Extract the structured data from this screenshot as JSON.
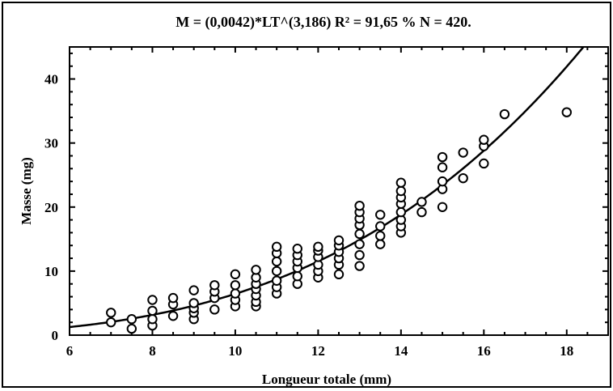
{
  "chart_data": {
    "type": "scatter",
    "title": "M = (0,0042)*LT^(3,186)   R² = 91,65 %  N = 420.",
    "xlabel": "Longueur totale (mm)",
    "ylabel": "Masse (mg)",
    "xlim": [
      6,
      19
    ],
    "ylim": [
      0,
      45
    ],
    "xticks": [
      "6",
      "8",
      "10",
      "12",
      "14",
      "16",
      "18"
    ],
    "yticks": [
      "0",
      "10",
      "20",
      "30",
      "40"
    ],
    "grid": false,
    "marker": "open-circle",
    "fit": {
      "type": "power",
      "a": 0.0042,
      "b": 3.186
    },
    "points": [
      [
        7,
        2
      ],
      [
        7,
        3.5
      ],
      [
        7.5,
        1
      ],
      [
        7.5,
        2.5
      ],
      [
        8,
        1.5
      ],
      [
        8,
        2.5
      ],
      [
        8,
        3.8
      ],
      [
        8,
        5.5
      ],
      [
        8.5,
        3
      ],
      [
        8.5,
        4.8
      ],
      [
        8.5,
        5.8
      ],
      [
        9,
        2.5
      ],
      [
        9,
        3.5
      ],
      [
        9,
        4.2
      ],
      [
        9,
        5
      ],
      [
        9,
        7
      ],
      [
        9.5,
        4
      ],
      [
        9.5,
        5.8
      ],
      [
        9.5,
        6.8
      ],
      [
        9.5,
        7.8
      ],
      [
        10,
        4.5
      ],
      [
        10,
        5.5
      ],
      [
        10,
        6.5
      ],
      [
        10,
        7.8
      ],
      [
        10,
        9.5
      ],
      [
        10.5,
        4.5
      ],
      [
        10.5,
        5.2
      ],
      [
        10.5,
        6.2
      ],
      [
        10.5,
        7.2
      ],
      [
        10.5,
        8
      ],
      [
        10.5,
        9
      ],
      [
        10.5,
        10.2
      ],
      [
        11,
        6.5
      ],
      [
        11,
        7.5
      ],
      [
        11,
        8.5
      ],
      [
        11,
        10
      ],
      [
        11,
        11.5
      ],
      [
        11,
        12.8
      ],
      [
        11,
        13.8
      ],
      [
        11.5,
        8
      ],
      [
        11.5,
        9.2
      ],
      [
        11.5,
        10.5
      ],
      [
        11.5,
        11.5
      ],
      [
        11.5,
        12.5
      ],
      [
        11.5,
        13.5
      ],
      [
        12,
        9
      ],
      [
        12,
        10
      ],
      [
        12,
        11
      ],
      [
        12,
        12.2
      ],
      [
        12,
        13.2
      ],
      [
        12,
        13.8
      ],
      [
        12.5,
        9.5
      ],
      [
        12.5,
        11
      ],
      [
        12.5,
        12
      ],
      [
        12.5,
        13
      ],
      [
        12.5,
        14
      ],
      [
        12.5,
        14.8
      ],
      [
        13,
        10.8
      ],
      [
        13,
        12.5
      ],
      [
        13,
        14.2
      ],
      [
        13,
        15.8
      ],
      [
        13,
        17.2
      ],
      [
        13,
        18.2
      ],
      [
        13,
        19.2
      ],
      [
        13,
        20.2
      ],
      [
        13.5,
        14.2
      ],
      [
        13.5,
        15.5
      ],
      [
        13.5,
        17
      ],
      [
        13.5,
        18.8
      ],
      [
        14,
        16
      ],
      [
        14,
        17
      ],
      [
        14,
        18
      ],
      [
        14,
        19.2
      ],
      [
        14,
        20.5
      ],
      [
        14,
        21.5
      ],
      [
        14,
        22.5
      ],
      [
        14,
        23.8
      ],
      [
        14.5,
        19.2
      ],
      [
        14.5,
        20.8
      ],
      [
        15,
        20
      ],
      [
        15,
        22.8
      ],
      [
        15,
        24
      ],
      [
        15,
        26.2
      ],
      [
        15,
        27.8
      ],
      [
        15.5,
        24.5
      ],
      [
        15.5,
        28.5
      ],
      [
        16,
        26.8
      ],
      [
        16,
        29.5
      ],
      [
        16,
        30.5
      ],
      [
        16.5,
        34.5
      ],
      [
        18,
        34.8
      ]
    ]
  }
}
